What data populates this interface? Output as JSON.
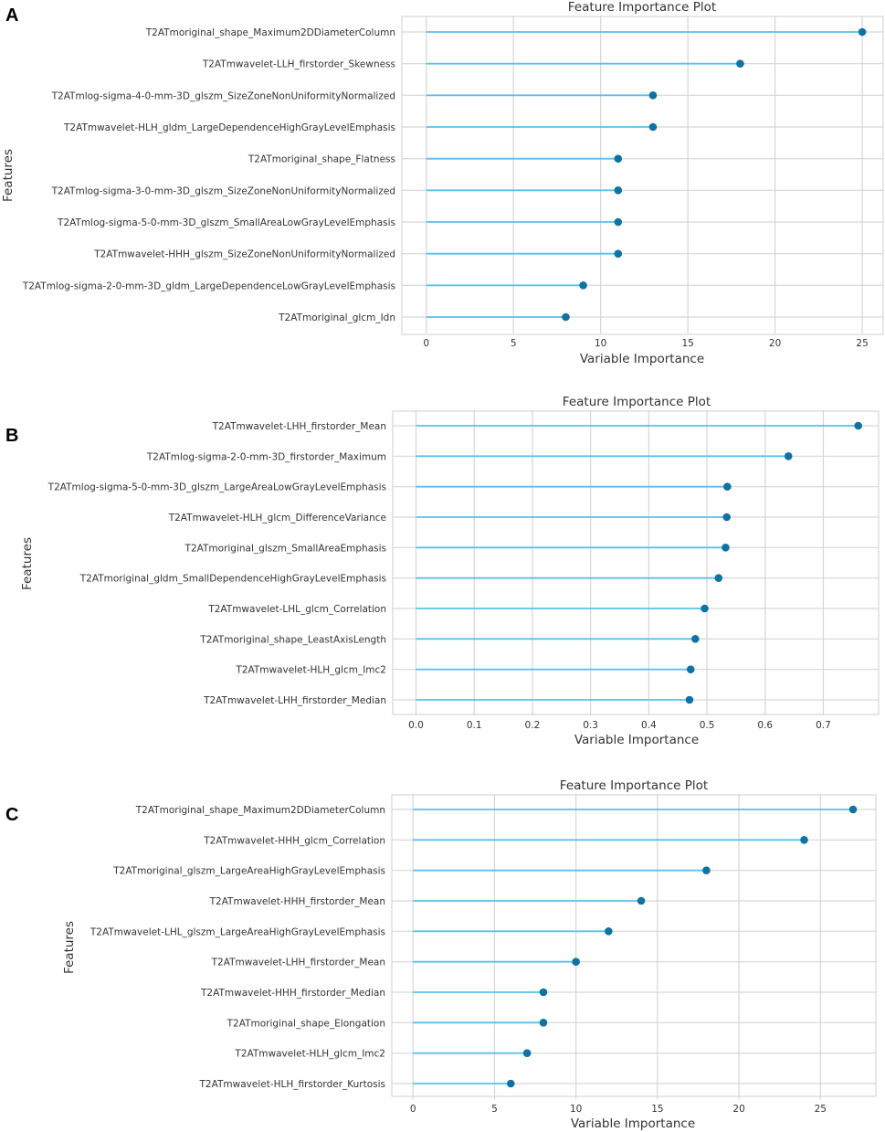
{
  "colors": {
    "stem": "#5bc0eb",
    "marker": "#0e72a3",
    "grid": "#d6d6d6",
    "frame": "#cfcfcf"
  },
  "chart_data": [
    {
      "panel": "A",
      "type": "lollipop",
      "title": "Feature Importance Plot",
      "xlabel": "Variable Importance",
      "ylabel": "Features",
      "xlim": [
        -1.4,
        26.2
      ],
      "xticks": [
        0,
        5,
        10,
        15,
        20,
        25
      ],
      "tick_labels": [
        "0",
        "5",
        "10",
        "15",
        "20",
        "25"
      ],
      "grid": true,
      "categories": [
        "T2ATmoriginal_shape_Maximum2DDiameterColumn",
        "T2ATmwavelet-LLH_firstorder_Skewness",
        "T2ATmlog-sigma-4-0-mm-3D_glszm_SizeZoneNonUniformityNormalized",
        "T2ATmwavelet-HLH_gldm_LargeDependenceHighGrayLevelEmphasis",
        "T2ATmoriginal_shape_Flatness",
        "T2ATmlog-sigma-3-0-mm-3D_glszm_SizeZoneNonUniformityNormalized",
        "T2ATmlog-sigma-5-0-mm-3D_glszm_SmallAreaLowGrayLevelEmphasis",
        "T2ATmwavelet-HHH_glszm_SizeZoneNonUniformityNormalized",
        "T2ATmlog-sigma-2-0-mm-3D_gldm_LargeDependenceLowGrayLevelEmphasis",
        "T2ATmoriginal_glcm_Idn"
      ],
      "values": [
        25,
        18,
        13,
        13,
        11,
        11,
        11,
        11,
        9,
        8
      ]
    },
    {
      "panel": "B",
      "type": "lollipop",
      "title": "Feature Importance Plot",
      "xlabel": "Variable Importance",
      "ylabel": "Features",
      "xlim": [
        -0.04,
        0.795
      ],
      "xticks": [
        0,
        0.1,
        0.2,
        0.3,
        0.4,
        0.5,
        0.6,
        0.7
      ],
      "tick_labels": [
        "0.0",
        "0.1",
        "0.2",
        "0.3",
        "0.4",
        "0.5",
        "0.6",
        "0.7"
      ],
      "grid": true,
      "categories": [
        "T2ATmwavelet-LHH_firstorder_Mean",
        "T2ATmlog-sigma-2-0-mm-3D_firstorder_Maximum",
        "T2ATmlog-sigma-5-0-mm-3D_glszm_LargeAreaLowGrayLevelEmphasis",
        "T2ATmwavelet-HLH_glcm_DifferenceVariance",
        "T2ATmoriginal_glszm_SmallAreaEmphasis",
        "T2ATmoriginal_gldm_SmallDependenceHighGrayLevelEmphasis",
        "T2ATmwavelet-LHL_glcm_Correlation",
        "T2ATmoriginal_shape_LeastAxisLength",
        "T2ATmwavelet-HLH_glcm_Imc2",
        "T2ATmwavelet-LHH_firstorder_Median"
      ],
      "values": [
        0.76,
        0.64,
        0.535,
        0.534,
        0.532,
        0.52,
        0.496,
        0.48,
        0.472,
        0.47
      ]
    },
    {
      "panel": "C",
      "type": "lollipop",
      "title": "Feature Importance Plot",
      "xlabel": "Variable Importance",
      "ylabel": "Features",
      "xlim": [
        -1.3,
        28.4
      ],
      "xticks": [
        0,
        5,
        10,
        15,
        20,
        25
      ],
      "tick_labels": [
        "0",
        "5",
        "10",
        "15",
        "20",
        "25"
      ],
      "grid": true,
      "categories": [
        "T2ATmoriginal_shape_Maximum2DDiameterColumn",
        "T2ATmwavelet-HHH_glcm_Correlation",
        "T2ATmoriginal_glszm_LargeAreaHighGrayLevelEmphasis",
        "T2ATmwavelet-HHH_firstorder_Mean",
        "T2ATmwavelet-LHL_glszm_LargeAreaHighGrayLevelEmphasis",
        "T2ATmwavelet-LHH_firstorder_Mean",
        "T2ATmwavelet-HHH_firstorder_Median",
        "T2ATmoriginal_shape_Elongation",
        "T2ATmwavelet-HLH_glcm_Imc2",
        "T2ATmwavelet-HLH_firstorder_Kurtosis"
      ],
      "values": [
        27,
        24,
        18,
        14,
        12,
        10,
        8,
        8,
        7,
        6
      ]
    }
  ]
}
